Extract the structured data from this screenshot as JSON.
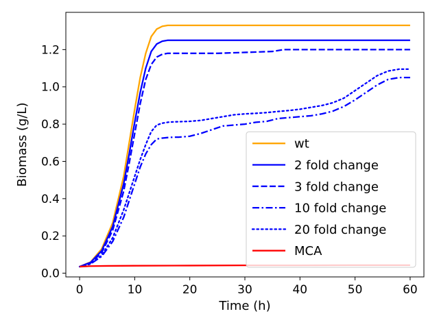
{
  "chart_data": {
    "type": "line",
    "xlabel": "Time (h)",
    "ylabel": "Biomass (g/L)",
    "xlim": [
      -2.5,
      62.5
    ],
    "ylim": [
      -0.02,
      1.4
    ],
    "xticks": [
      0,
      10,
      20,
      30,
      40,
      50,
      60
    ],
    "yticks": [
      0.0,
      0.2,
      0.4,
      0.6,
      0.8,
      1.0,
      1.2
    ],
    "ytick_labels": [
      "0.0",
      "0.2",
      "0.4",
      "0.6",
      "0.8",
      "1.0",
      "1.2"
    ],
    "legend": "lower-right",
    "grid": false,
    "series": [
      {
        "name": "wt",
        "color": "#FFA500",
        "style": "solid",
        "x": [
          0,
          2,
          4,
          6,
          8,
          9,
          10,
          11,
          12,
          13,
          14,
          15,
          16,
          17,
          18,
          20,
          30,
          40,
          50,
          60
        ],
        "y": [
          0.035,
          0.06,
          0.13,
          0.27,
          0.52,
          0.7,
          0.88,
          1.05,
          1.18,
          1.27,
          1.31,
          1.325,
          1.33,
          1.33,
          1.33,
          1.33,
          1.33,
          1.33,
          1.33,
          1.33
        ]
      },
      {
        "name": "2 fold change",
        "color": "#0000FF",
        "style": "solid",
        "x": [
          0,
          2,
          4,
          6,
          8,
          9,
          10,
          11,
          12,
          13,
          14,
          15,
          16,
          17,
          18,
          20,
          30,
          40,
          50,
          60
        ],
        "y": [
          0.035,
          0.058,
          0.12,
          0.25,
          0.48,
          0.64,
          0.81,
          0.97,
          1.1,
          1.19,
          1.23,
          1.245,
          1.25,
          1.25,
          1.25,
          1.25,
          1.25,
          1.25,
          1.25,
          1.25
        ]
      },
      {
        "name": "3 fold change",
        "color": "#0000FF",
        "style": "dashed",
        "x": [
          0,
          2,
          4,
          6,
          8,
          9,
          10,
          11,
          12,
          13,
          14,
          15,
          16,
          17,
          18,
          20,
          25,
          30,
          35,
          37,
          40,
          50,
          60
        ],
        "y": [
          0.035,
          0.055,
          0.11,
          0.23,
          0.44,
          0.59,
          0.75,
          0.91,
          1.04,
          1.12,
          1.16,
          1.175,
          1.18,
          1.18,
          1.18,
          1.18,
          1.18,
          1.185,
          1.19,
          1.2,
          1.2,
          1.2,
          1.2
        ]
      },
      {
        "name": "10 fold change",
        "color": "#0000FF",
        "style": "dashdot",
        "x": [
          0,
          2,
          4,
          6,
          8,
          9,
          10,
          11,
          12,
          13,
          14,
          15,
          16,
          17,
          18,
          20,
          22,
          24,
          26,
          28,
          30,
          32,
          34,
          36,
          38,
          40,
          42,
          44,
          46,
          48,
          50,
          52,
          54,
          56,
          58,
          60
        ],
        "y": [
          0.035,
          0.05,
          0.09,
          0.17,
          0.3,
          0.39,
          0.48,
          0.57,
          0.64,
          0.69,
          0.72,
          0.725,
          0.728,
          0.73,
          0.73,
          0.735,
          0.75,
          0.77,
          0.79,
          0.795,
          0.8,
          0.81,
          0.815,
          0.83,
          0.835,
          0.84,
          0.845,
          0.855,
          0.87,
          0.895,
          0.93,
          0.97,
          1.01,
          1.04,
          1.05,
          1.05
        ]
      },
      {
        "name": "20 fold change",
        "color": "#0000FF",
        "style": "dotted",
        "x": [
          0,
          2,
          4,
          6,
          8,
          9,
          10,
          11,
          12,
          13,
          14,
          15,
          16,
          17,
          18,
          20,
          22,
          24,
          26,
          28,
          30,
          32,
          34,
          36,
          38,
          40,
          42,
          44,
          46,
          48,
          50,
          52,
          54,
          56,
          58,
          60
        ],
        "y": [
          0.035,
          0.05,
          0.095,
          0.19,
          0.34,
          0.43,
          0.52,
          0.61,
          0.69,
          0.76,
          0.795,
          0.805,
          0.81,
          0.812,
          0.813,
          0.815,
          0.82,
          0.83,
          0.84,
          0.85,
          0.855,
          0.858,
          0.862,
          0.868,
          0.873,
          0.88,
          0.89,
          0.9,
          0.915,
          0.94,
          0.98,
          1.02,
          1.06,
          1.085,
          1.095,
          1.095
        ]
      },
      {
        "name": "MCA",
        "color": "#FF0000",
        "style": "solid",
        "x": [
          0,
          2,
          5,
          10,
          20,
          30,
          40,
          50,
          60
        ],
        "y": [
          0.035,
          0.038,
          0.039,
          0.04,
          0.041,
          0.042,
          0.042,
          0.043,
          0.043
        ]
      }
    ]
  }
}
